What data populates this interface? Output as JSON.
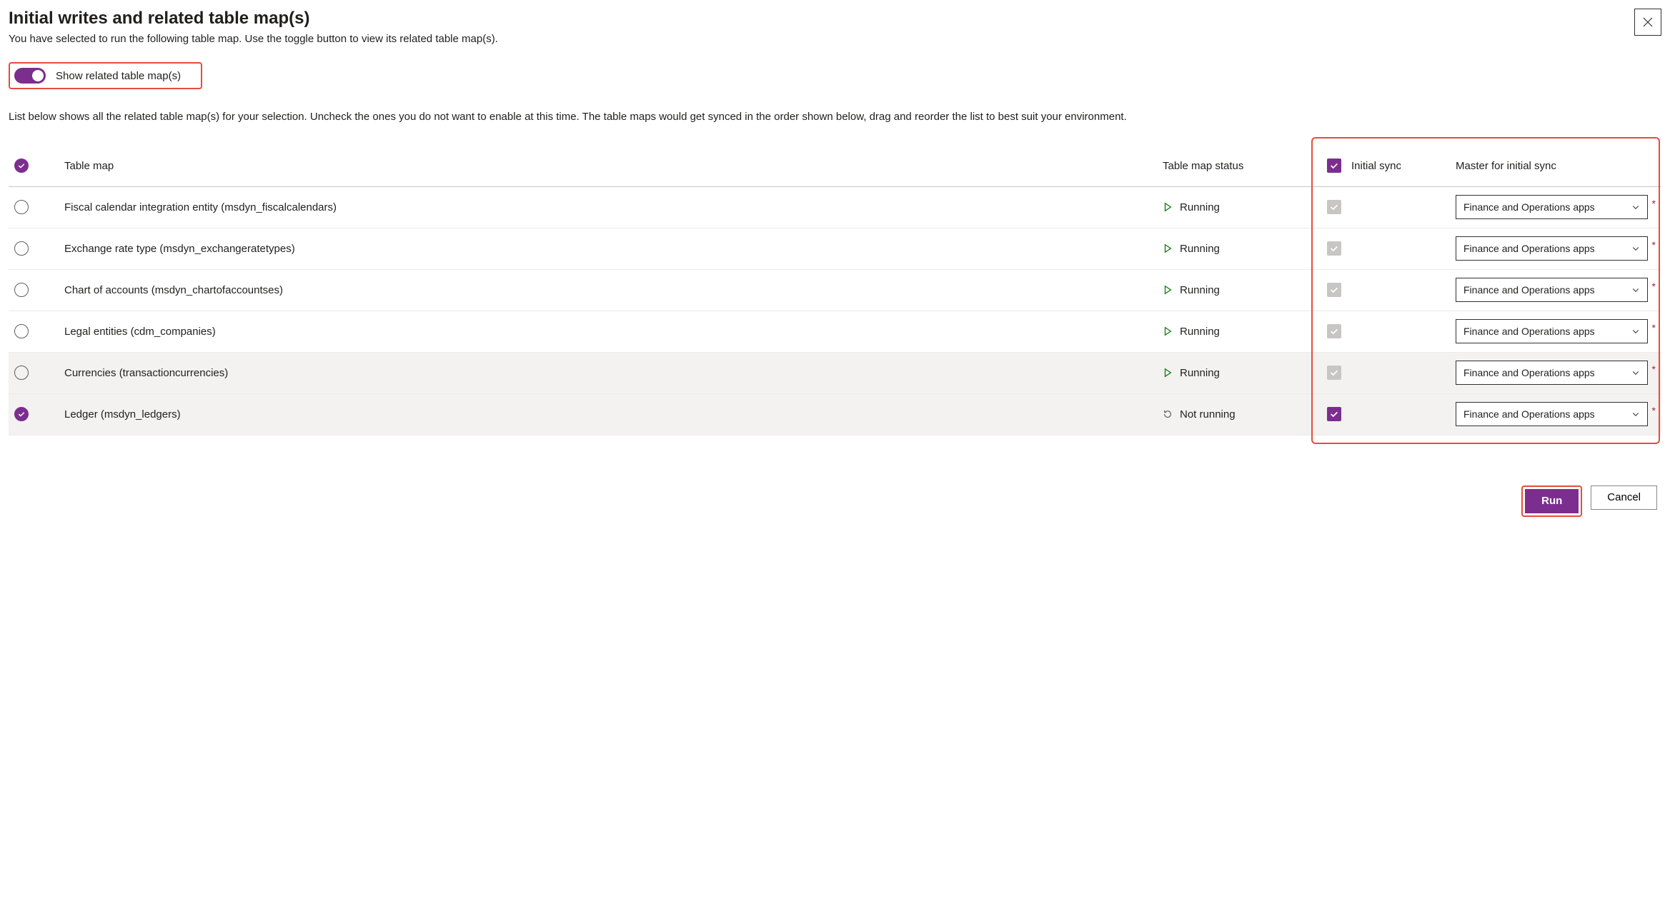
{
  "dialog": {
    "title": "Initial writes and related table map(s)",
    "subtitle": "You have selected to run the following table map. Use the toggle button to view its related table map(s).",
    "toggle_label": "Show related table map(s)",
    "list_description": "List below shows all the related table map(s) for your selection. Uncheck the ones you do not want to enable at this time. The table maps would get synced in the order shown below, drag and reorder the list to best suit your environment."
  },
  "columns": {
    "table_map": "Table map",
    "status": "Table map status",
    "initial_sync": "Initial sync",
    "master": "Master for initial sync"
  },
  "status_labels": {
    "running": "Running",
    "not_running": "Not running"
  },
  "master_option": "Finance and Operations apps",
  "rows": [
    {
      "name": "Fiscal calendar integration entity (msdyn_fiscalcalendars)",
      "status": "running",
      "selected": false,
      "sync_disabled": true,
      "sync_checked": true,
      "required": true,
      "shade": false
    },
    {
      "name": "Exchange rate type (msdyn_exchangeratetypes)",
      "status": "running",
      "selected": false,
      "sync_disabled": true,
      "sync_checked": true,
      "required": true,
      "shade": false
    },
    {
      "name": "Chart of accounts (msdyn_chartofaccountses)",
      "status": "running",
      "selected": false,
      "sync_disabled": true,
      "sync_checked": true,
      "required": true,
      "shade": false
    },
    {
      "name": "Legal entities (cdm_companies)",
      "status": "running",
      "selected": false,
      "sync_disabled": true,
      "sync_checked": true,
      "required": true,
      "shade": false
    },
    {
      "name": "Currencies (transactioncurrencies)",
      "status": "running",
      "selected": false,
      "sync_disabled": true,
      "sync_checked": true,
      "required": true,
      "shade": true
    },
    {
      "name": "Ledger (msdyn_ledgers)",
      "status": "not_running",
      "selected": true,
      "sync_disabled": false,
      "sync_checked": true,
      "required": true,
      "shade": true
    }
  ],
  "buttons": {
    "run": "Run",
    "cancel": "Cancel"
  },
  "colors": {
    "accent": "#7b2e8e",
    "highlight": "#e74c3c",
    "running_icon": "#107c10"
  }
}
